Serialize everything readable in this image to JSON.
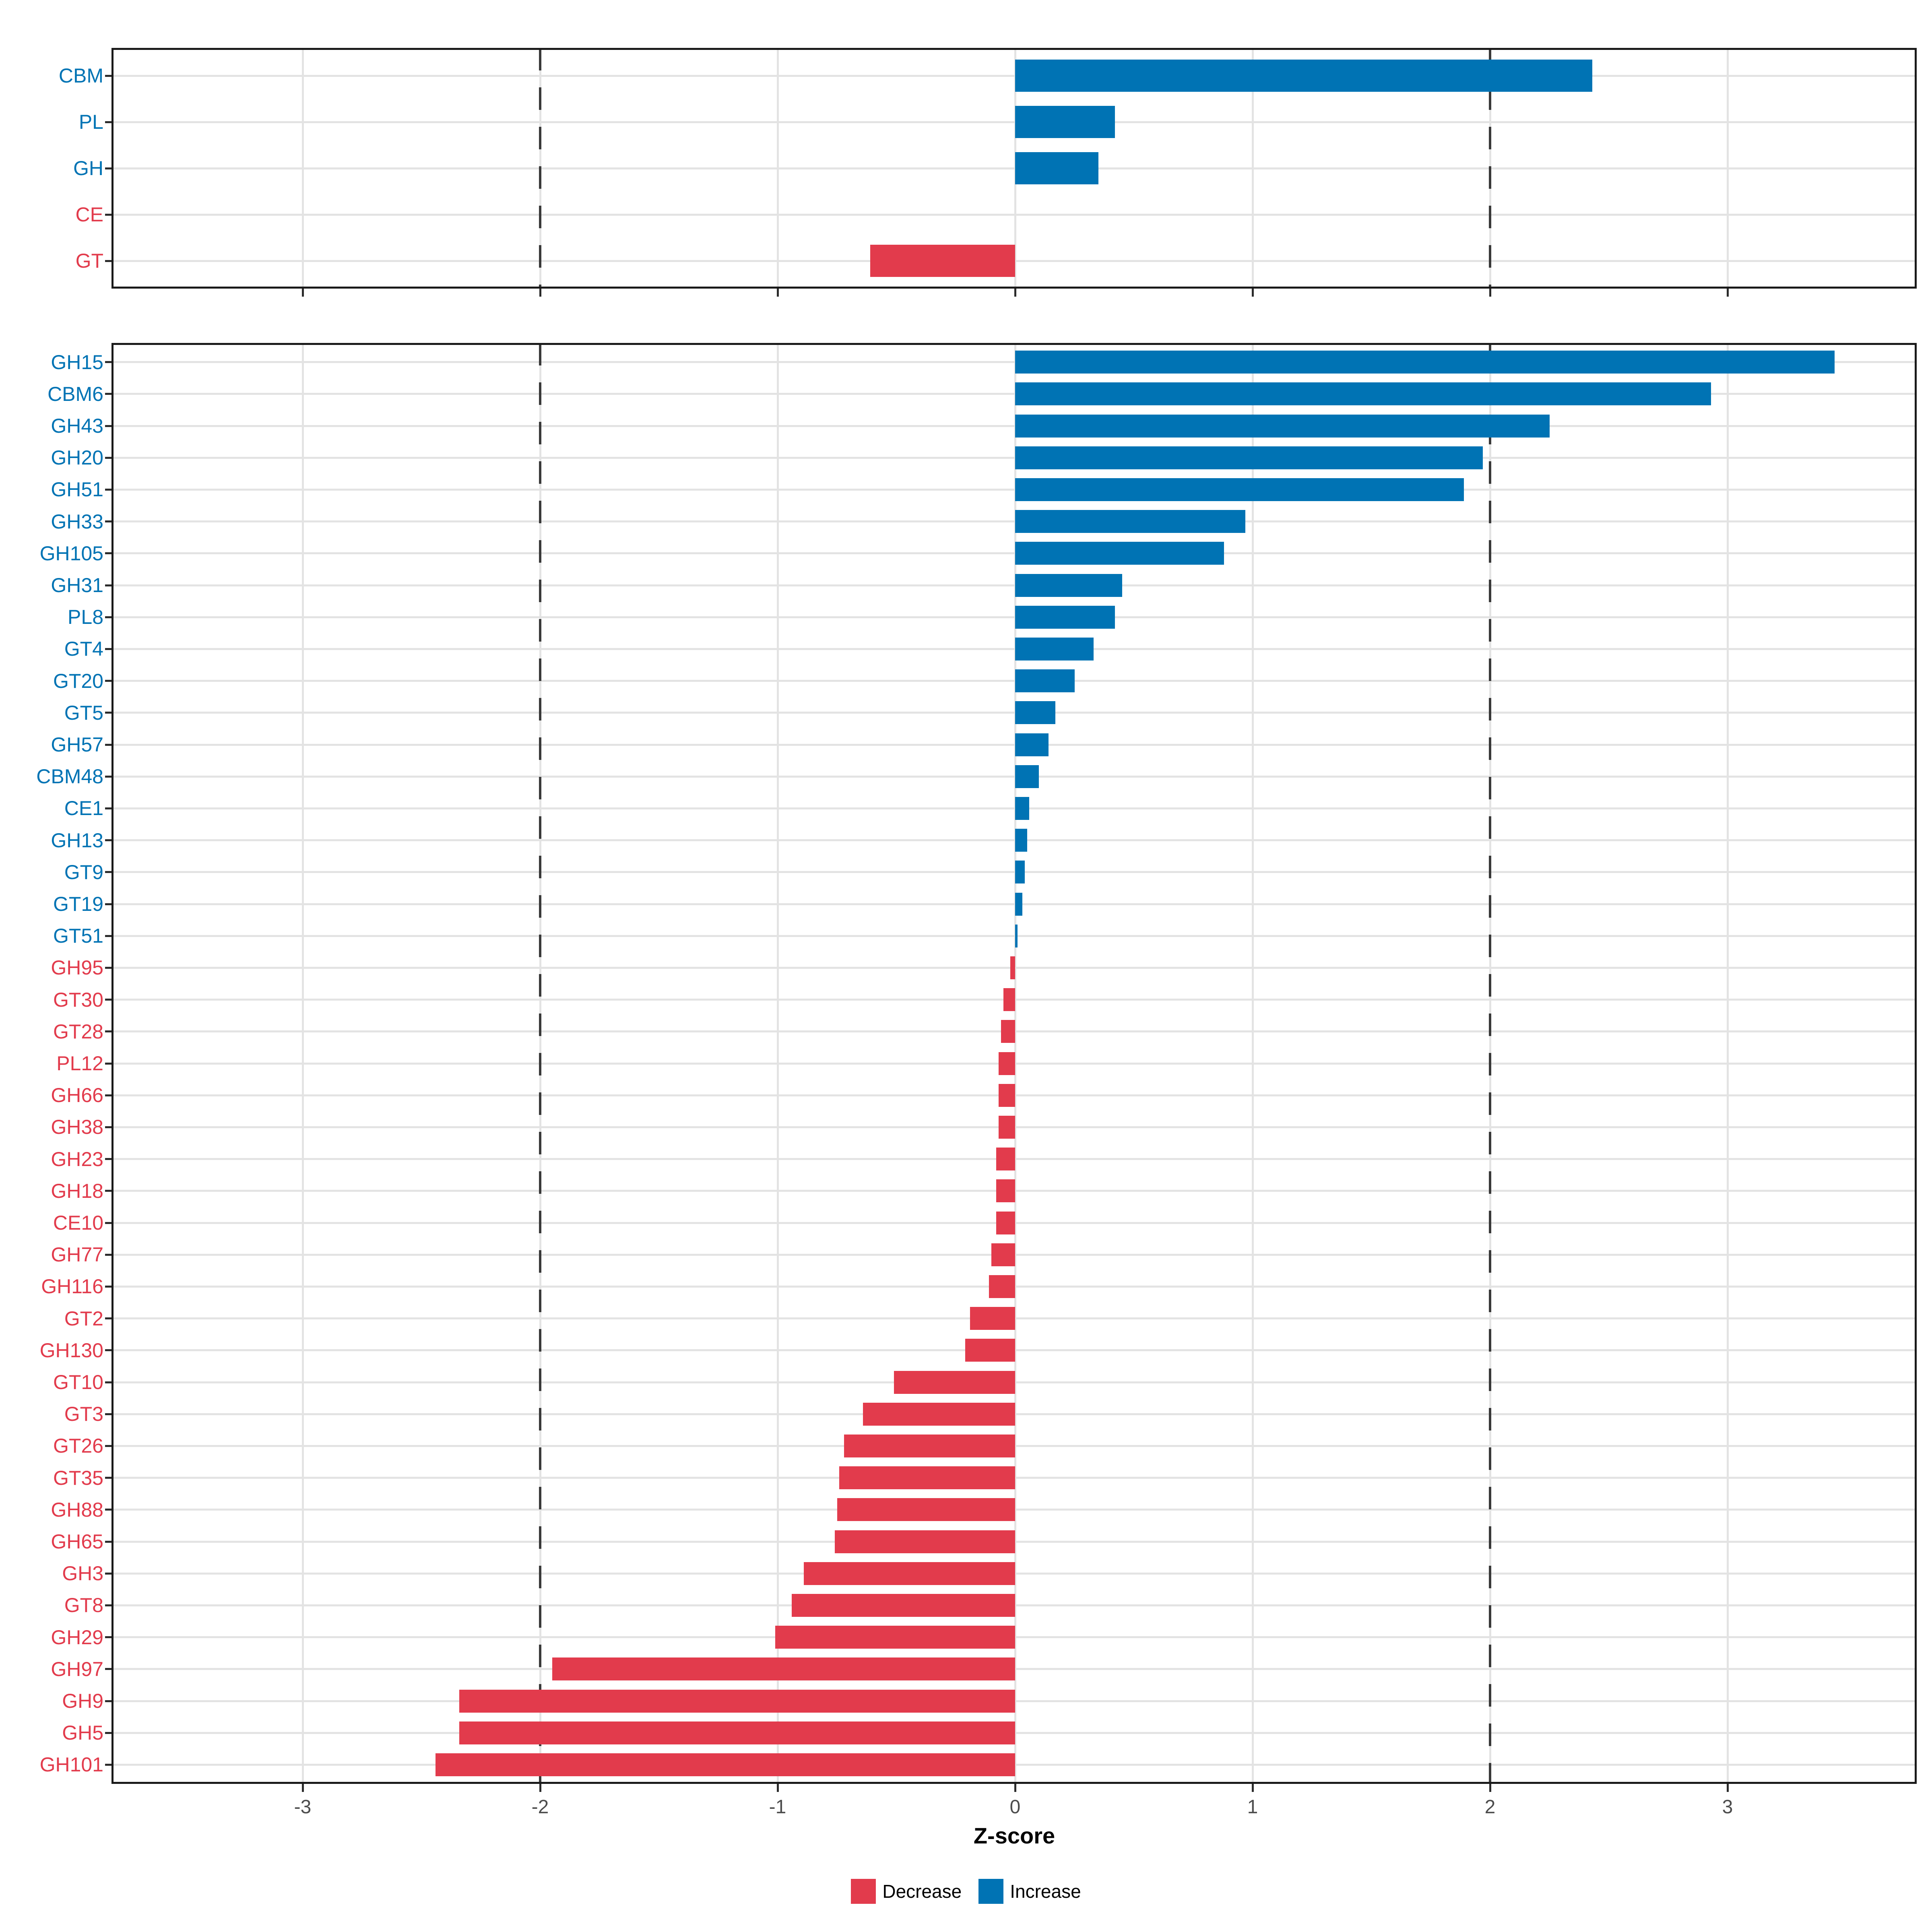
{
  "figure": {
    "kind": "horizontal diverging bar chart, two stacked panels (CAZyme classes and CAZyme families)",
    "background": "#ffffff"
  },
  "axis": {
    "title": "Z-score",
    "tick_labels": [
      "-3",
      "-2",
      "-1",
      "0",
      "1",
      "2",
      "3"
    ],
    "tick_values": [
      -3,
      -2,
      -1,
      0,
      1,
      2,
      3
    ],
    "xlim": [
      -3.8,
      3.8
    ],
    "reference_lines_dashed": [
      -2,
      2
    ],
    "grid": true
  },
  "legend": {
    "items": [
      {
        "label": "Decrease",
        "color": "#e23b4c"
      },
      {
        "label": "Increase",
        "color": "#0073b4"
      }
    ]
  },
  "colors": {
    "increase": "#0073b4",
    "decrease": "#e23b4c",
    "grid": "#e3e3e3",
    "reference_line": "#3a3a3a",
    "panel_border": "#1a1a1a",
    "tick_text": "#4d4d4d",
    "tick_mark": "#2b2b2b"
  },
  "chart_data": [
    {
      "type": "bar",
      "orientation": "horizontal",
      "panel": "classes",
      "categories": [
        "CBM",
        "PL",
        "GH",
        "CE",
        "GT"
      ],
      "values": [
        2.43,
        0.42,
        0.35,
        0.0,
        -0.61
      ],
      "groups": [
        "Increase",
        "Increase",
        "Increase",
        "Decrease",
        "Decrease"
      ],
      "xlabel": "",
      "xlim": [
        -3.8,
        3.8
      ]
    },
    {
      "type": "bar",
      "orientation": "horizontal",
      "panel": "families",
      "categories": [
        "GH15",
        "CBM6",
        "GH43",
        "GH20",
        "GH51",
        "GH33",
        "GH105",
        "GH31",
        "PL8",
        "GT4",
        "GT20",
        "GT5",
        "GH57",
        "CBM48",
        "CE1",
        "GH13",
        "GT9",
        "GT19",
        "GT51",
        "GH95",
        "GT30",
        "GT28",
        "PL12",
        "GH66",
        "GH38",
        "GH23",
        "GH18",
        "CE10",
        "GH77",
        "GH116",
        "GT2",
        "GH130",
        "GT10",
        "GT3",
        "GT26",
        "GT35",
        "GH88",
        "GH65",
        "GH3",
        "GT8",
        "GH29",
        "GH97",
        "GH9",
        "GH5",
        "GH101"
      ],
      "values": [
        3.45,
        2.93,
        2.25,
        1.97,
        1.89,
        0.97,
        0.88,
        0.45,
        0.42,
        0.33,
        0.25,
        0.17,
        0.14,
        0.1,
        0.06,
        0.05,
        0.04,
        0.03,
        0.01,
        -0.02,
        -0.05,
        -0.06,
        -0.07,
        -0.07,
        -0.07,
        -0.08,
        -0.08,
        -0.08,
        -0.1,
        -0.11,
        -0.19,
        -0.21,
        -0.51,
        -0.64,
        -0.72,
        -0.74,
        -0.75,
        -0.76,
        -0.89,
        -0.94,
        -1.01,
        -1.95,
        -2.34,
        -2.34,
        -2.44
      ],
      "groups": [
        "Increase",
        "Increase",
        "Increase",
        "Increase",
        "Increase",
        "Increase",
        "Increase",
        "Increase",
        "Increase",
        "Increase",
        "Increase",
        "Increase",
        "Increase",
        "Increase",
        "Increase",
        "Increase",
        "Increase",
        "Increase",
        "Increase",
        "Decrease",
        "Decrease",
        "Decrease",
        "Decrease",
        "Decrease",
        "Decrease",
        "Decrease",
        "Decrease",
        "Decrease",
        "Decrease",
        "Decrease",
        "Decrease",
        "Decrease",
        "Decrease",
        "Decrease",
        "Decrease",
        "Decrease",
        "Decrease",
        "Decrease",
        "Decrease",
        "Decrease",
        "Decrease",
        "Decrease",
        "Decrease",
        "Decrease",
        "Decrease"
      ],
      "xlabel": "Z-score",
      "xlim": [
        -3.8,
        3.8
      ]
    }
  ]
}
